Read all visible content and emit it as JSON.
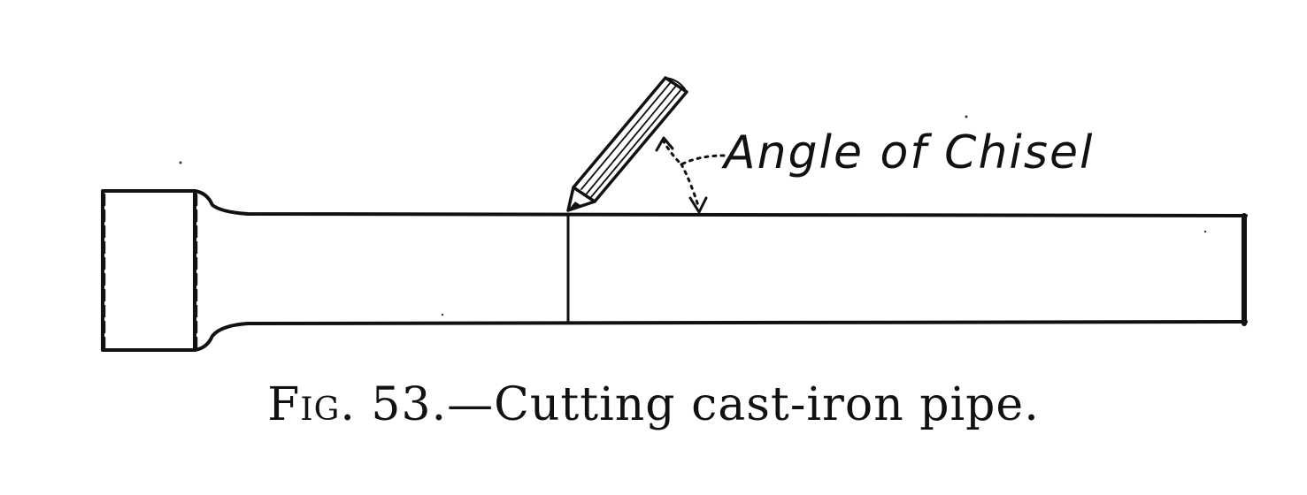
{
  "diagram": {
    "label": "Angle of Chisel"
  },
  "caption": {
    "figure": "Fig. 53.",
    "text": "—Cutting cast-iron pipe."
  }
}
